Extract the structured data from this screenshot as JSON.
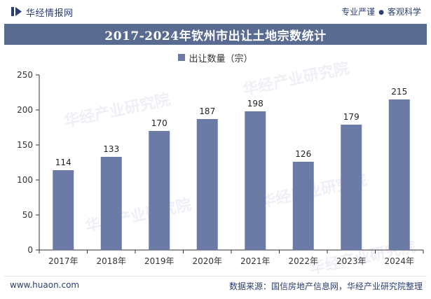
{
  "header": {
    "site_name": "华经情报网",
    "slogan_left": "专业严谨",
    "slogan_right": "客观科学"
  },
  "footer": {
    "url": "www.huaon.com",
    "source": "数据来源：国信房地产信息网，华经产业研究院整理"
  },
  "watermark": "华经产业研究院",
  "colors": {
    "bar": "#6b7ba6",
    "title_bg": "#5a6b92"
  },
  "chart_data": {
    "type": "bar",
    "title": "2017-2024年钦州市出让土地宗数统计",
    "legend": [
      "出让数量（宗）"
    ],
    "categories": [
      "2017年",
      "2018年",
      "2019年",
      "2020年",
      "2021年",
      "2022年",
      "2023年",
      "2024年"
    ],
    "series": [
      {
        "name": "出让数量（宗）",
        "values": [
          114,
          133,
          170,
          187,
          198,
          126,
          179,
          215
        ]
      }
    ],
    "ylim": [
      0,
      250
    ],
    "yticks": [
      0,
      50,
      100,
      150,
      200,
      250
    ],
    "xlabel": "",
    "ylabel": "",
    "grid": false
  }
}
